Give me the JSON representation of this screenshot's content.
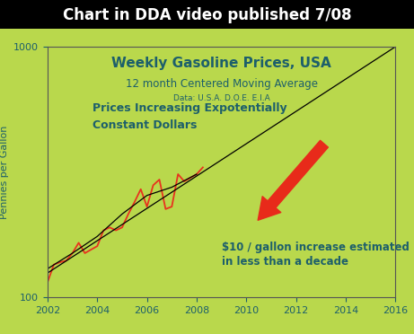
{
  "header": "Chart in DDA video published 7/08",
  "chart_data": {
    "type": "line",
    "title": "Weekly Gasoline Prices, USA",
    "subtitle": "12 month Centered Moving Average",
    "source": "Data: U.S.A. D.O.E. E.I.A",
    "y_label": "Pennies per Gallon",
    "annotations": [
      "Prices Increasing Expotentially\nConstant Dollars",
      "$10 / gallon increase estimated\nin less than a decade"
    ],
    "log": "y",
    "xlim": [
      2002,
      2016
    ],
    "xticks": [
      2002,
      2004,
      2006,
      2008,
      2010,
      2012,
      2014,
      2016
    ],
    "ylim": [
      100,
      1000
    ],
    "yticks": [
      100,
      1000
    ],
    "grid": false,
    "series": [
      {
        "color": "#e8321e",
        "line_style": "solid",
        "x": [
          2002.0,
          2002.25,
          2002.5,
          2002.75,
          2003.0,
          2003.25,
          2003.5,
          2003.75,
          2004.0,
          2004.25,
          2004.5,
          2004.75,
          2005.0,
          2005.25,
          2005.5,
          2005.75,
          2006.0,
          2006.25,
          2006.5,
          2006.75,
          2007.0,
          2007.25,
          2007.5,
          2007.75,
          2008.0,
          2008.25
        ],
        "values": [
          115,
          135,
          138,
          140,
          150,
          165,
          150,
          155,
          160,
          185,
          190,
          185,
          190,
          215,
          240,
          270,
          230,
          280,
          295,
          225,
          230,
          310,
          290,
          300,
          310,
          330
        ]
      },
      {
        "color": "#000000",
        "line_style": "solid",
        "x": [
          2002.0,
          2003.0,
          2004.0,
          2005.0,
          2006.0,
          2007.0,
          2008.0
        ],
        "values": [
          130,
          150,
          175,
          215,
          255,
          275,
          310
        ]
      },
      {
        "color": "#000000",
        "line_style": "solid",
        "x": [
          2002,
          2016
        ],
        "values": [
          125,
          1000
        ]
      }
    ]
  }
}
